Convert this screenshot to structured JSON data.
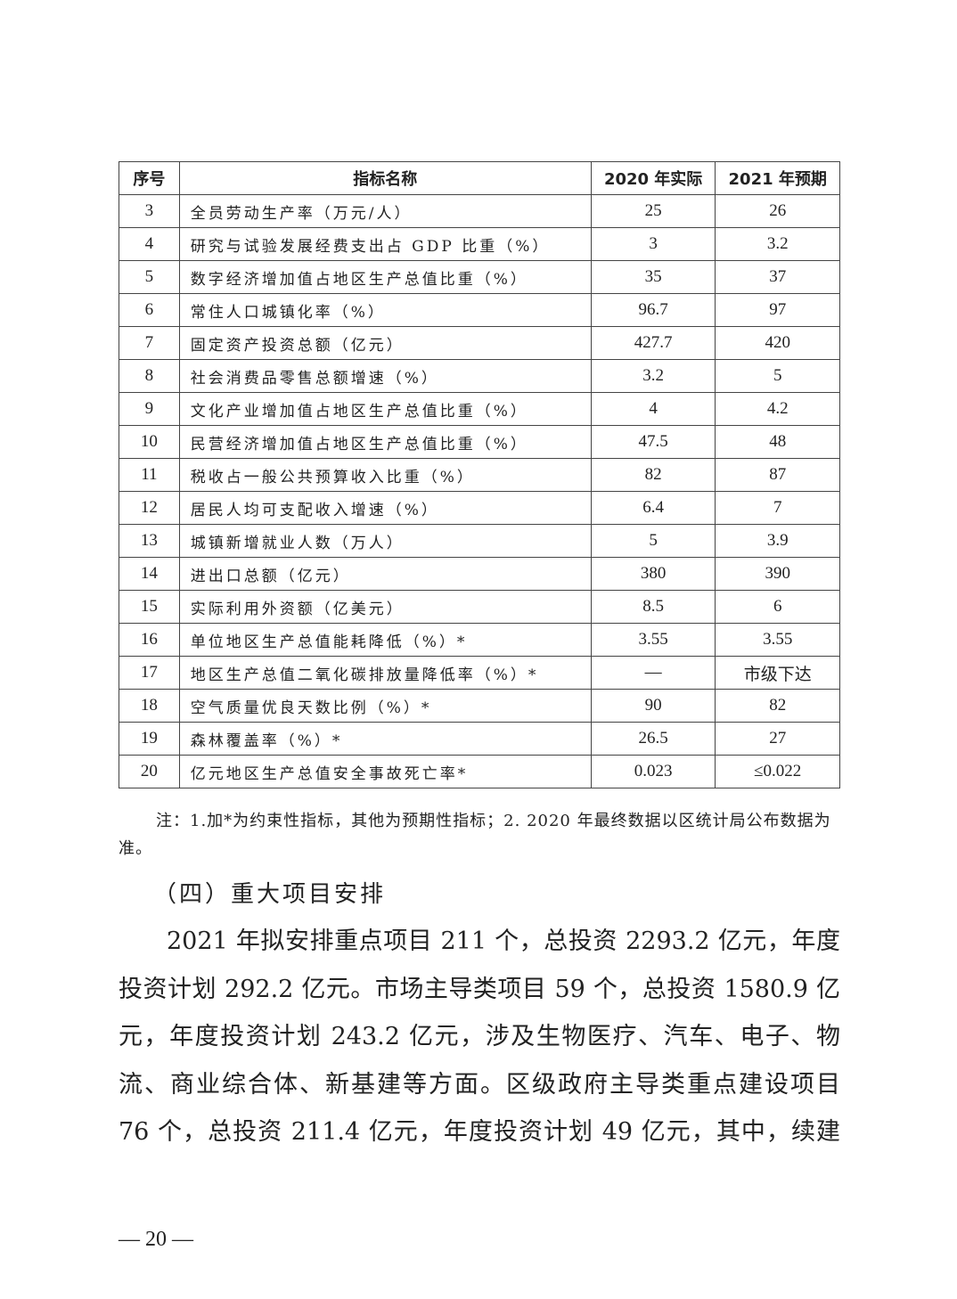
{
  "table": {
    "headers": [
      "序号",
      "指标名称",
      "2020 年实际",
      "2021 年预期"
    ],
    "rows": [
      [
        "3",
        "全员劳动生产率（万元/人）",
        "25",
        "26"
      ],
      [
        "4",
        "研究与试验发展经费支出占 GDP 比重（%）",
        "3",
        "3.2"
      ],
      [
        "5",
        "数字经济增加值占地区生产总值比重（%）",
        "35",
        "37"
      ],
      [
        "6",
        "常住人口城镇化率（%）",
        "96.7",
        "97"
      ],
      [
        "7",
        "固定资产投资总额（亿元）",
        "427.7",
        "420"
      ],
      [
        "8",
        "社会消费品零售总额增速（%）",
        "3.2",
        "5"
      ],
      [
        "9",
        "文化产业增加值占地区生产总值比重（%）",
        "4",
        "4.2"
      ],
      [
        "10",
        "民营经济增加值占地区生产总值比重（%）",
        "47.5",
        "48"
      ],
      [
        "11",
        "税收占一般公共预算收入比重（%）",
        "82",
        "87"
      ],
      [
        "12",
        "居民人均可支配收入增速（%）",
        "6.4",
        "7"
      ],
      [
        "13",
        "城镇新增就业人数（万人）",
        "5",
        "3.9"
      ],
      [
        "14",
        "进出口总额（亿元）",
        "380",
        "390"
      ],
      [
        "15",
        "实际利用外资额（亿美元）",
        "8.5",
        "6"
      ],
      [
        "16",
        "单位地区生产总值能耗降低（%）*",
        "3.55",
        "3.55"
      ],
      [
        "17",
        "地区生产总值二氧化碳排放量降低率（%）*",
        "—",
        "市级下达"
      ],
      [
        "18",
        "空气质量优良天数比例（%）*",
        "90",
        "82"
      ],
      [
        "19",
        "森林覆盖率（%）*",
        "26.5",
        "27"
      ],
      [
        "20",
        "亿元地区生产总值安全事故死亡率*",
        "0.023",
        "≤0.022"
      ]
    ]
  },
  "note": "注：1.加*为约束性指标，其他为预期性指标；2. 2020 年最终数据以区统计局公布数据为准。",
  "heading": "（四）重大项目安排",
  "paragraph_lines": [
    "2021 年拟安排重点项目 211 个，总投资 2293.2 亿元，年度",
    "投资计划 292.2 亿元。市场主导类项目 59 个，总投资 1580.9 亿",
    "元，年度投资计划 243.2 亿元，涉及生物医疗、汽车、电子、物",
    "流、商业综合体、新基建等方面。区级政府主导类重点建设项目",
    "76 个，总投资 211.4 亿元，年度投资计划 49 亿元，其中，续建"
  ],
  "page_number": "— 20 —"
}
